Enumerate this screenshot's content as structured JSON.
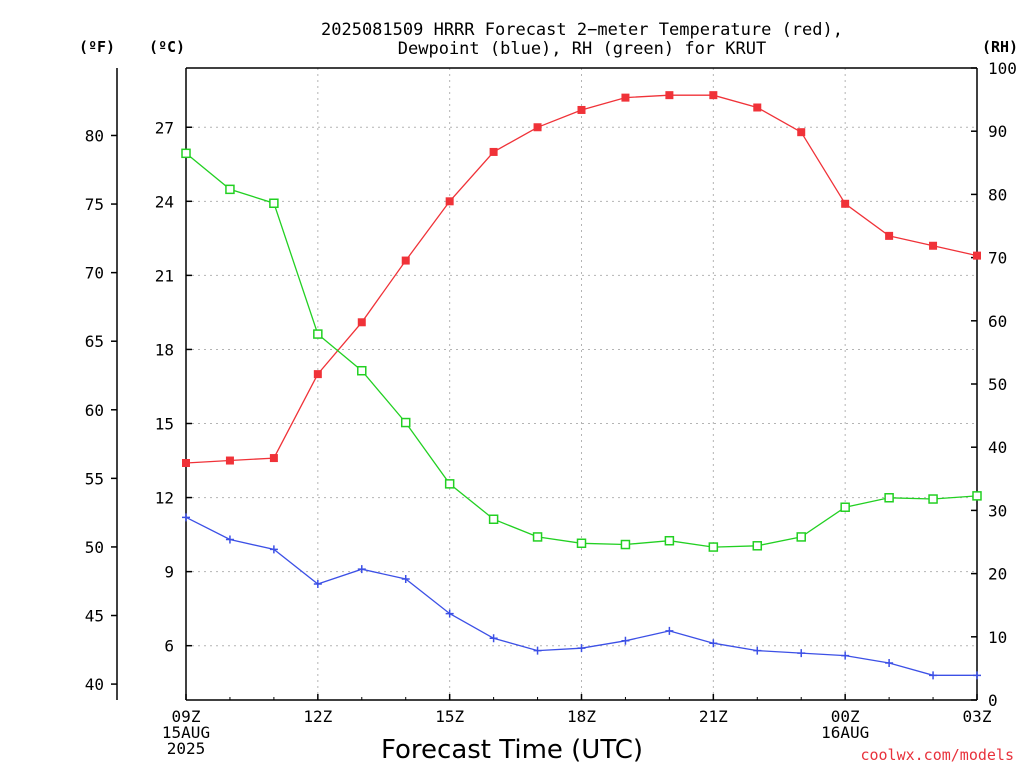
{
  "chart_data": {
    "type": "line",
    "title_lines": [
      "2025081509 HRRR Forecast 2−meter Temperature (red),",
      "Dewpoint (blue), RH (green) for KRUT"
    ],
    "xlabel": "Forecast Time (UTC)",
    "credit": "coolwx.com/models",
    "units": {
      "fahrenheit": "(ºF)",
      "celsius": "(ºC)",
      "rh": "(RH)"
    },
    "x_hours": [
      0,
      1,
      2,
      3,
      4,
      5,
      6,
      7,
      8,
      9,
      10,
      11,
      12,
      13,
      14,
      15,
      16,
      17,
      18
    ],
    "x_ticks": [
      {
        "hour": 0,
        "lines": [
          "09Z",
          "15AUG",
          "2025"
        ]
      },
      {
        "hour": 3,
        "lines": [
          "12Z"
        ]
      },
      {
        "hour": 6,
        "lines": [
          "15Z"
        ]
      },
      {
        "hour": 9,
        "lines": [
          "18Z"
        ]
      },
      {
        "hour": 12,
        "lines": [
          "21Z"
        ]
      },
      {
        "hour": 15,
        "lines": [
          "00Z",
          "16AUG"
        ]
      },
      {
        "hour": 18,
        "lines": [
          "03Z"
        ]
      }
    ],
    "xlim": [
      0,
      18
    ],
    "celsius_axis": {
      "ylim": [
        3.8,
        29.4
      ],
      "ticks": [
        6,
        9,
        12,
        15,
        18,
        21,
        24,
        27
      ]
    },
    "fahrenheit_axis": {
      "ticks": [
        40,
        45,
        50,
        55,
        60,
        65,
        70,
        75,
        80
      ]
    },
    "rh_axis": {
      "ylim": [
        0,
        100
      ],
      "ticks": [
        0,
        10,
        20,
        30,
        40,
        50,
        60,
        70,
        80,
        90,
        100
      ]
    },
    "grid": true,
    "series": [
      {
        "name": "Temperature",
        "color": "#f03238",
        "marker": "filled-square",
        "axis": "celsius",
        "values": [
          13.4,
          13.5,
          13.6,
          17.0,
          19.1,
          21.6,
          24.0,
          26.0,
          27.0,
          27.7,
          28.2,
          28.3,
          28.3,
          27.8,
          26.8,
          23.9,
          22.6,
          22.2,
          21.8
        ]
      },
      {
        "name": "Dewpoint",
        "color": "#3c50e6",
        "marker": "plus",
        "axis": "celsius",
        "values": [
          11.2,
          10.3,
          9.9,
          8.5,
          9.1,
          8.7,
          7.3,
          6.3,
          5.8,
          5.9,
          6.2,
          6.6,
          6.1,
          5.8,
          5.7,
          5.6,
          5.3,
          4.8,
          4.8
        ]
      },
      {
        "name": "RH",
        "color": "#22d022",
        "marker": "open-square",
        "axis": "rh",
        "values": [
          86.5,
          80.8,
          78.6,
          57.9,
          52.1,
          43.9,
          34.2,
          28.6,
          25.8,
          24.8,
          24.6,
          25.2,
          24.2,
          24.4,
          25.8,
          30.5,
          32.0,
          31.8,
          32.3
        ]
      }
    ]
  }
}
